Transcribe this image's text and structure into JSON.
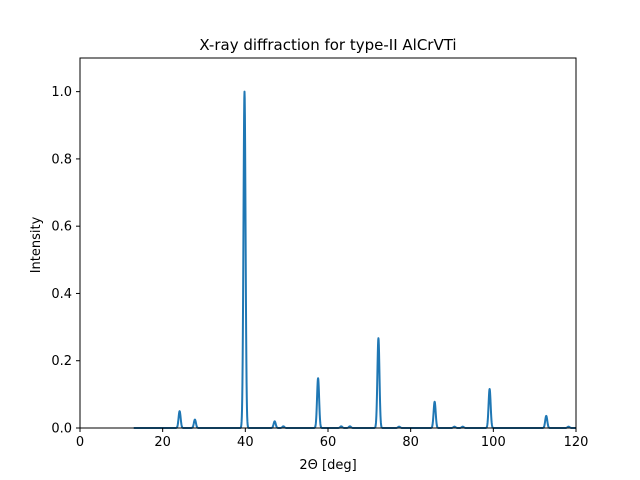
{
  "chart_data": {
    "type": "line",
    "title": "X-ray diffraction for type-II AlCrVTi",
    "xlabel": "2Θ [deg]",
    "ylabel": "Intensity",
    "xlim": [
      0,
      120
    ],
    "ylim": [
      0,
      1.1
    ],
    "x_ticks": [
      0,
      20,
      40,
      60,
      80,
      100,
      120
    ],
    "y_ticks": [
      0.0,
      0.2,
      0.4,
      0.6,
      0.8,
      1.0
    ],
    "grid": false,
    "legend": "none",
    "x_start": 13,
    "x_end": 120,
    "series": [
      {
        "color": "#1f77b4",
        "peaks": [
          {
            "x": 24.1,
            "y": 0.05
          },
          {
            "x": 27.8,
            "y": 0.025
          },
          {
            "x": 39.8,
            "y": 1.0
          },
          {
            "x": 47.1,
            "y": 0.02
          },
          {
            "x": 49.2,
            "y": 0.005
          },
          {
            "x": 57.6,
            "y": 0.148
          },
          {
            "x": 63.2,
            "y": 0.005
          },
          {
            "x": 65.3,
            "y": 0.005
          },
          {
            "x": 72.2,
            "y": 0.267
          },
          {
            "x": 77.2,
            "y": 0.004
          },
          {
            "x": 85.8,
            "y": 0.078
          },
          {
            "x": 90.6,
            "y": 0.004
          },
          {
            "x": 92.6,
            "y": 0.004
          },
          {
            "x": 99.1,
            "y": 0.116
          },
          {
            "x": 112.8,
            "y": 0.036
          },
          {
            "x": 118.2,
            "y": 0.004
          }
        ]
      }
    ]
  }
}
